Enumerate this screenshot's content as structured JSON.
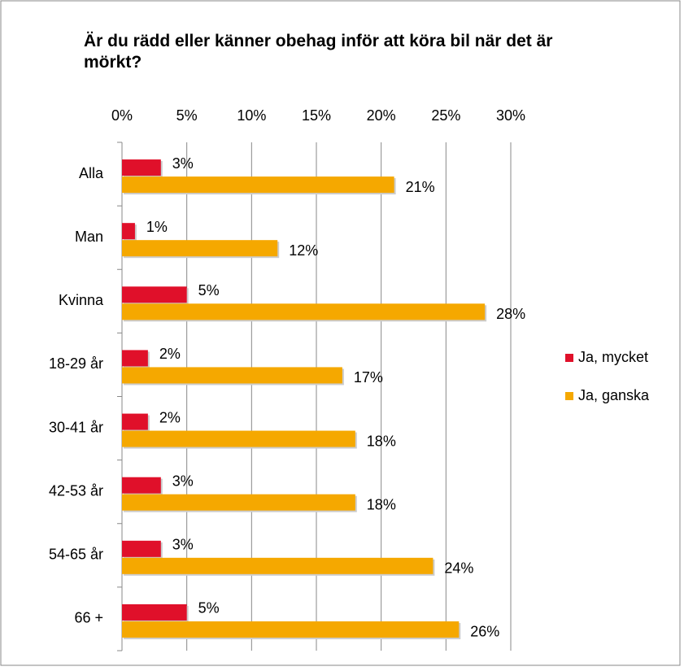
{
  "chart_data": {
    "type": "hbar",
    "title": "Är du rädd eller känner obehag inför att köra bil när det är mörkt?",
    "categories": [
      "Alla",
      "Man",
      "Kvinna",
      "18-29 år",
      "30-41 år",
      "42-53 år",
      "54-65 år",
      "66 +"
    ],
    "series": [
      {
        "name": "Ja, mycket",
        "color": "#e0102a",
        "values": [
          3,
          1,
          5,
          2,
          2,
          3,
          3,
          5
        ],
        "value_labels": [
          "3%",
          "1%",
          "5%",
          "2%",
          "2%",
          "3%",
          "3%",
          "5%"
        ]
      },
      {
        "name": "Ja, ganska",
        "color": "#f5a800",
        "values": [
          21,
          12,
          28,
          17,
          18,
          18,
          24,
          26
        ],
        "value_labels": [
          "21%",
          "12%",
          "28%",
          "17%",
          "18%",
          "18%",
          "24%",
          "26%"
        ]
      }
    ],
    "xlim": [
      0,
      30
    ],
    "xticks": [
      {
        "value": 0,
        "label": "0%"
      },
      {
        "value": 5,
        "label": "5%"
      },
      {
        "value": 10,
        "label": "10%"
      },
      {
        "value": 15,
        "label": "15%"
      },
      {
        "value": 20,
        "label": "20%"
      },
      {
        "value": 25,
        "label": "25%"
      },
      {
        "value": 30,
        "label": "30%"
      }
    ],
    "grid": true,
    "legend": "right"
  }
}
